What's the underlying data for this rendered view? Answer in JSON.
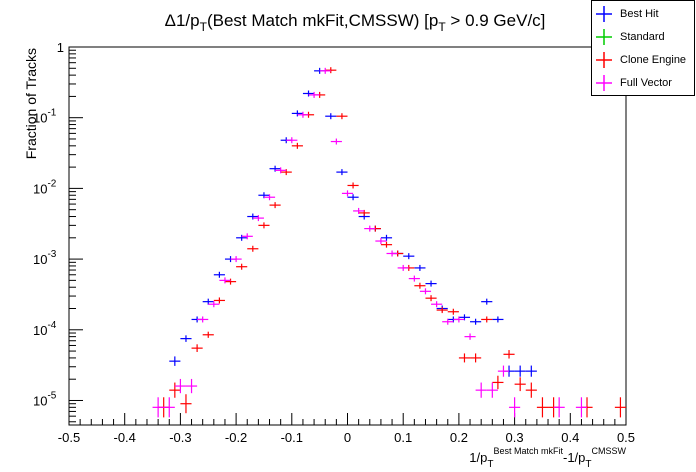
{
  "chart_data": {
    "type": "scatter",
    "title_main": "Δ1/p",
    "title_sub": "T",
    "title_rest": "(Best Match mkFit,CMSSW) [p",
    "title_sub2": "T",
    "title_tail": " > 0.9 GeV/c]",
    "ylabel": "Fraction of Tracks",
    "xlabel_parts": {
      "a": "1/p",
      "a_sub": "T",
      "a_sup": "Best Match mkFit",
      "b": "-1/p",
      "b_sub": "T",
      "b_sup": "CMSSW"
    },
    "xlim": [
      -0.5,
      0.5
    ],
    "ylim_log": [
      4.5e-06,
      1
    ],
    "x_ticks": [
      "-0.5",
      "-0.4",
      "-0.3",
      "-0.2",
      "-0.1",
      "0",
      "0.1",
      "0.2",
      "0.3",
      "0.4",
      "0.5"
    ],
    "x_tick_values": [
      -0.5,
      -0.4,
      -0.3,
      -0.2,
      -0.1,
      0,
      0.1,
      0.2,
      0.3,
      0.4,
      0.5
    ],
    "y_ticks": [
      {
        "base": "1",
        "exp": "",
        "value": 1
      },
      {
        "base": "10",
        "exp": "-1",
        "value": 0.1
      },
      {
        "base": "10",
        "exp": "-2",
        "value": 0.01
      },
      {
        "base": "10",
        "exp": "-3",
        "value": 0.001
      },
      {
        "base": "10",
        "exp": "-4",
        "value": 0.0001
      },
      {
        "base": "10",
        "exp": "-5",
        "value": 1e-05
      }
    ],
    "bin_half_width": 0.01,
    "series": [
      {
        "name": "Best Hit",
        "color": "#0000ff",
        "points": [
          [
            -0.31,
            3.6e-05
          ],
          [
            -0.29,
            7.5e-05
          ],
          [
            -0.27,
            0.00014
          ],
          [
            -0.25,
            0.00025
          ],
          [
            -0.23,
            0.0006
          ],
          [
            -0.21,
            0.001
          ],
          [
            -0.19,
            0.002
          ],
          [
            -0.17,
            0.004
          ],
          [
            -0.15,
            0.008
          ],
          [
            -0.13,
            0.019
          ],
          [
            -0.11,
            0.048
          ],
          [
            -0.09,
            0.115
          ],
          [
            -0.07,
            0.22
          ],
          [
            -0.05,
            0.46
          ],
          [
            -0.03,
            0.105
          ],
          [
            -0.01,
            0.017
          ],
          [
            0.01,
            0.0075
          ],
          [
            0.03,
            0.004
          ],
          [
            0.05,
            0.0027
          ],
          [
            0.07,
            0.002
          ],
          [
            0.09,
            0.0012
          ],
          [
            0.11,
            0.0011
          ],
          [
            0.13,
            0.00075
          ],
          [
            0.15,
            0.00045
          ],
          [
            0.17,
            0.0002
          ],
          [
            0.19,
            0.00014
          ],
          [
            0.21,
            0.00015
          ],
          [
            0.23,
            0.00013
          ],
          [
            0.25,
            0.00025
          ],
          [
            0.27,
            0.00014
          ],
          [
            0.29,
            2.6e-05
          ],
          [
            0.31,
            2.6e-05
          ],
          [
            0.33,
            2.6e-05
          ]
        ]
      },
      {
        "name": "Standard",
        "color": "#00cc00",
        "points": []
      },
      {
        "name": "Clone Engine",
        "color": "#ff0000",
        "points": [
          [
            -0.33,
            8e-06
          ],
          [
            -0.31,
            1.4e-05
          ],
          [
            -0.29,
            9e-06
          ],
          [
            -0.27,
            5.5e-05
          ],
          [
            -0.25,
            8.5e-05
          ],
          [
            -0.23,
            0.00026
          ],
          [
            -0.21,
            0.00048
          ],
          [
            -0.19,
            0.00078
          ],
          [
            -0.17,
            0.0014
          ],
          [
            -0.15,
            0.003
          ],
          [
            -0.13,
            0.0058
          ],
          [
            -0.11,
            0.017
          ],
          [
            -0.09,
            0.04
          ],
          [
            -0.07,
            0.11
          ],
          [
            -0.05,
            0.21
          ],
          [
            -0.03,
            0.47
          ],
          [
            -0.01,
            0.105
          ],
          [
            0.01,
            0.011
          ],
          [
            0.03,
            0.0045
          ],
          [
            0.05,
            0.0027
          ],
          [
            0.07,
            0.0016
          ],
          [
            0.09,
            0.0012
          ],
          [
            0.11,
            0.00075
          ],
          [
            0.13,
            0.00042
          ],
          [
            0.15,
            0.00028
          ],
          [
            0.17,
            0.00019
          ],
          [
            0.19,
            0.00018
          ],
          [
            0.21,
            4e-05
          ],
          [
            0.23,
            4e-05
          ],
          [
            0.25,
            0.00014
          ],
          [
            0.27,
            1.8e-05
          ],
          [
            0.29,
            4.5e-05
          ],
          [
            0.31,
            1.7e-05
          ],
          [
            0.33,
            1.4e-05
          ],
          [
            0.35,
            8e-06
          ],
          [
            0.37,
            8e-06
          ],
          [
            0.43,
            8e-06
          ],
          [
            0.49,
            8e-06
          ]
        ]
      },
      {
        "name": "Full Vector",
        "color": "#ff00ff",
        "points": [
          [
            -0.34,
            8e-06
          ],
          [
            -0.32,
            8e-06
          ],
          [
            -0.3,
            1.6e-05
          ],
          [
            -0.28,
            1.6e-05
          ],
          [
            -0.26,
            0.00014
          ],
          [
            -0.24,
            0.00023
          ],
          [
            -0.22,
            0.0005
          ],
          [
            -0.2,
            0.001
          ],
          [
            -0.18,
            0.0021
          ],
          [
            -0.16,
            0.0038
          ],
          [
            -0.14,
            0.0075
          ],
          [
            -0.12,
            0.018
          ],
          [
            -0.1,
            0.048
          ],
          [
            -0.08,
            0.11
          ],
          [
            -0.06,
            0.21
          ],
          [
            -0.04,
            0.46
          ],
          [
            -0.02,
            0.046
          ],
          [
            0.0,
            0.0085
          ],
          [
            0.02,
            0.0048
          ],
          [
            0.04,
            0.0027
          ],
          [
            0.06,
            0.0018
          ],
          [
            0.08,
            0.0012
          ],
          [
            0.1,
            0.00075
          ],
          [
            0.12,
            0.00053
          ],
          [
            0.14,
            0.00035
          ],
          [
            0.16,
            0.00023
          ],
          [
            0.18,
            0.00013
          ],
          [
            0.2,
            0.00014
          ],
          [
            0.22,
            8e-05
          ],
          [
            0.24,
            1.4e-05
          ],
          [
            0.26,
            1.4e-05
          ],
          [
            0.28,
            2.6e-05
          ],
          [
            0.3,
            8e-06
          ],
          [
            0.38,
            8e-06
          ],
          [
            0.42,
            8e-06
          ]
        ]
      }
    ],
    "legend": [
      "Best Hit",
      "Standard",
      "Clone Engine",
      "Full Vector"
    ],
    "legend_placement": "top-right"
  }
}
